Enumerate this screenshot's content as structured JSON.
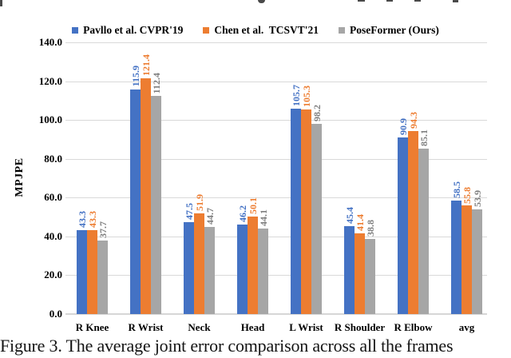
{
  "figure": {
    "caption": "Figure 3. The average joint error comparison across all the frames"
  },
  "chart_data": {
    "type": "bar",
    "title": "",
    "xlabel": "",
    "ylabel": "MPJPE",
    "categories": [
      "R Knee",
      "R Wrist",
      "Neck",
      "Head",
      "L Wrist",
      "R Shoulder",
      "R Elbow",
      "avg"
    ],
    "series": [
      {
        "name": "Pavllo et al. CVPR'19",
        "color": "#4472C4",
        "label_color": "#4472C4",
        "values": [
          43.3,
          115.9,
          47.5,
          46.2,
          105.7,
          45.4,
          90.9,
          58.5
        ]
      },
      {
        "name": "Chen et al.  TCSVT'21",
        "color": "#ED7D31",
        "label_color": "#ED7D31",
        "values": [
          43.3,
          121.4,
          51.9,
          50.1,
          105.3,
          41.4,
          94.3,
          55.8
        ]
      },
      {
        "name": "PoseFormer (Ours)",
        "color": "#A6A6A6",
        "label_color": "#7F7F7F",
        "values": [
          37.7,
          112.4,
          44.7,
          44.1,
          98.2,
          38.8,
          85.1,
          53.9
        ]
      }
    ],
    "ylim": [
      0,
      140
    ],
    "ytick_step": 20,
    "ytick_labels": [
      "0.0",
      "20.0",
      "40.0",
      "60.0",
      "80.0",
      "100.0",
      "120.0",
      "140.0"
    ],
    "grid": true,
    "legend_position": "top",
    "gridline_color": "#D9D9D9",
    "value_labels_rotated_deg": 90
  }
}
